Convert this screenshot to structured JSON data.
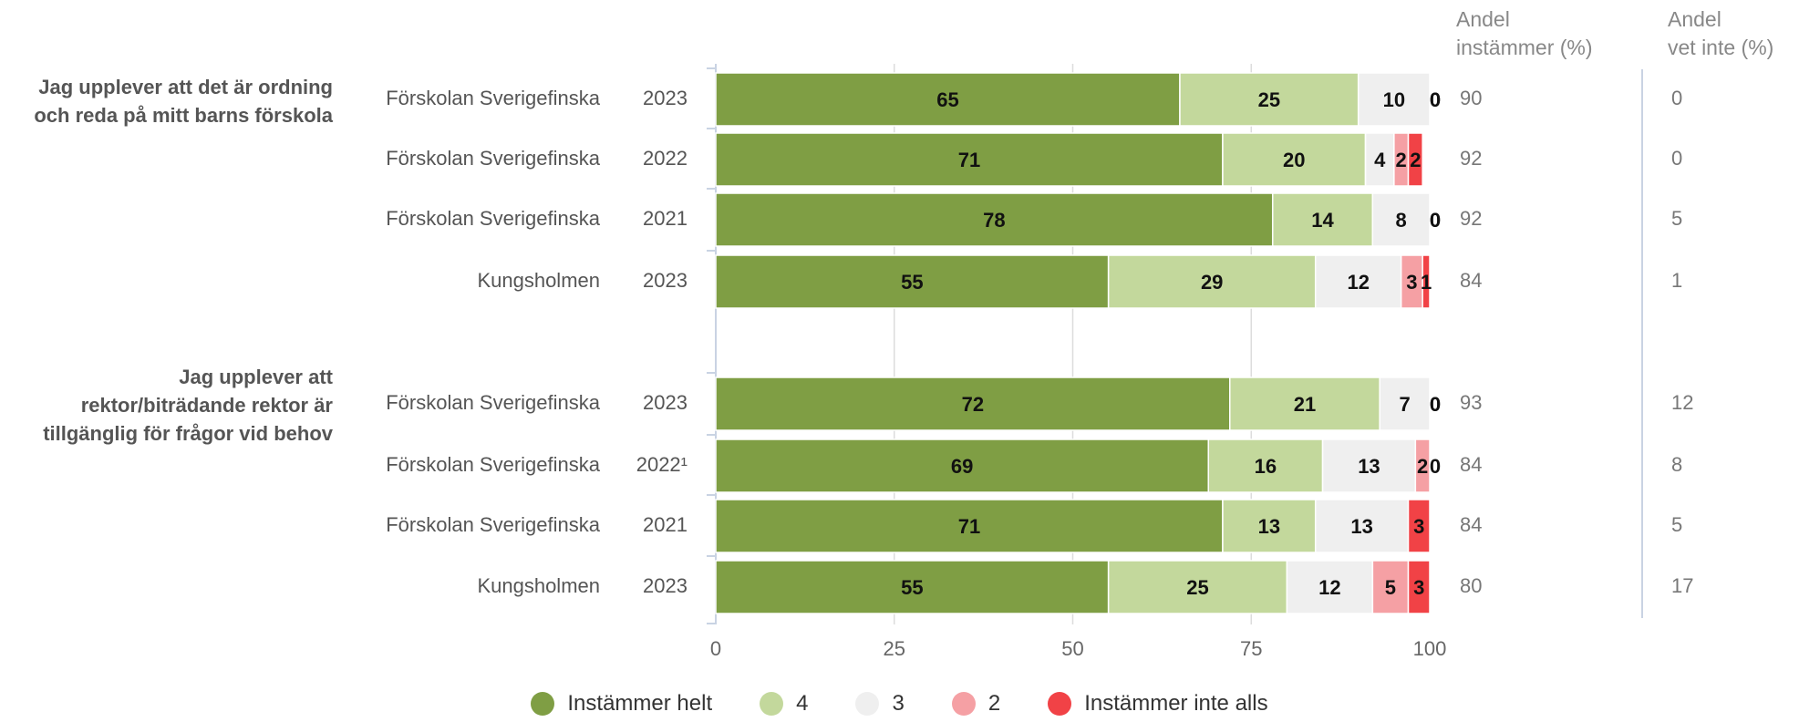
{
  "chart_data": {
    "type": "bar",
    "orientation": "horizontal",
    "stacked": true,
    "xlim": [
      0,
      100
    ],
    "x_ticks": [
      0,
      25,
      50,
      75,
      100
    ],
    "grid": true,
    "legend_position": "bottom",
    "columns": {
      "andel_instammer": "Andel\ninstämmer (%)",
      "andel_vet_inte": "Andel\nvet inte (%)"
    },
    "series": [
      {
        "name": "Instämmer helt",
        "color": "#7f9e44"
      },
      {
        "name": "4",
        "color": "#c3d89c"
      },
      {
        "name": "3",
        "color": "#efefef"
      },
      {
        "name": "2",
        "color": "#f5a0a4"
      },
      {
        "name": "Instämmer inte alls",
        "color": "#f14246"
      }
    ],
    "groups": [
      {
        "question": "Jag upplever att det är ordning och reda på mitt barns förskola",
        "rows": [
          {
            "unit": "Förskolan Sverigefinska",
            "year": "2023",
            "values": [
              65,
              25,
              10,
              0,
              0
            ],
            "andel_instammer": "90",
            "andel_vet_inte": "0"
          },
          {
            "unit": "Förskolan Sverigefinska",
            "year": "2022",
            "values": [
              71,
              20,
              4,
              2,
              2
            ],
            "andel_instammer": "92",
            "andel_vet_inte": "0"
          },
          {
            "unit": "Förskolan Sverigefinska",
            "year": "2021",
            "values": [
              78,
              14,
              8,
              0,
              0
            ],
            "andel_instammer": "92",
            "andel_vet_inte": "5"
          },
          {
            "unit": "Kungsholmen",
            "year": "2023",
            "values": [
              55,
              29,
              12,
              3,
              1
            ],
            "andel_instammer": "84",
            "andel_vet_inte": "1"
          }
        ]
      },
      {
        "question": "Jag upplever att rektor/biträdande rektor är tillgänglig för frågor vid behov",
        "rows": [
          {
            "unit": "Förskolan Sverigefinska",
            "year": "2023",
            "values": [
              72,
              21,
              7,
              0,
              0
            ],
            "andel_instammer": "93",
            "andel_vet_inte": "12"
          },
          {
            "unit": "Förskolan Sverigefinska",
            "year": "2022¹",
            "values": [
              69,
              16,
              13,
              2,
              0
            ],
            "andel_instammer": "84",
            "andel_vet_inte": "8"
          },
          {
            "unit": "Förskolan Sverigefinska",
            "year": "2021",
            "values": [
              71,
              13,
              13,
              0,
              3
            ],
            "andel_instammer": "84",
            "andel_vet_inte": "5"
          },
          {
            "unit": "Kungsholmen",
            "year": "2023",
            "values": [
              55,
              25,
              12,
              5,
              3
            ],
            "andel_instammer": "80",
            "andel_vet_inte": "17"
          }
        ]
      }
    ]
  }
}
